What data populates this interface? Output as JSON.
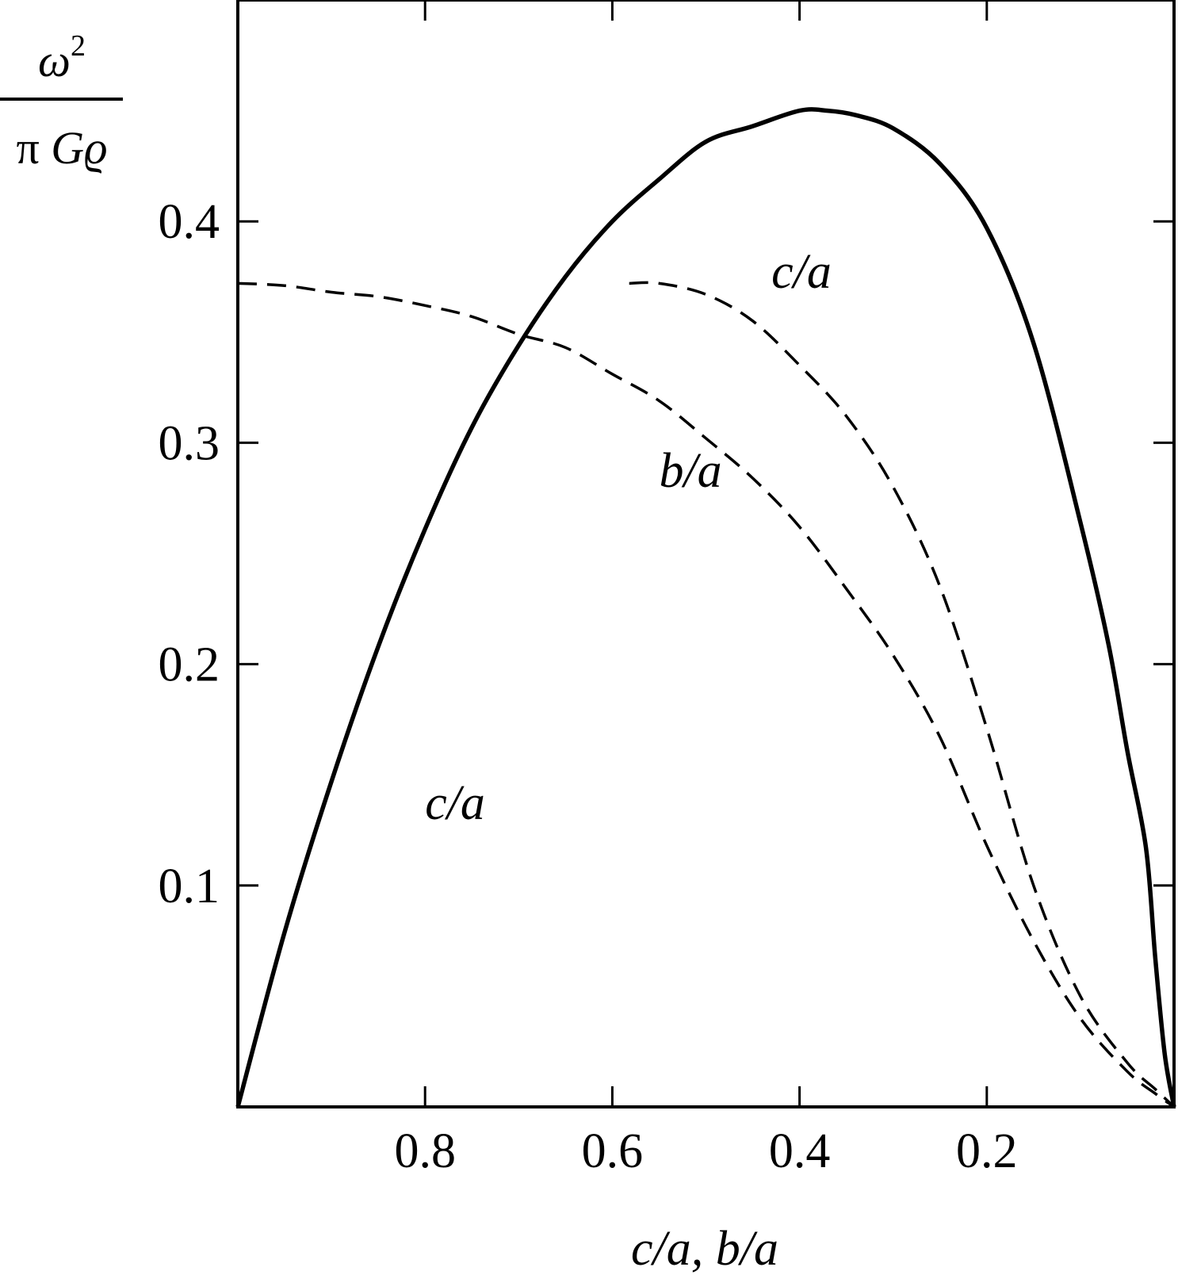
{
  "chart_data": {
    "type": "line",
    "title": "",
    "xlabel": "c/a, b/a",
    "ylabel": {
      "numerator": "ω",
      "exponent": "2",
      "denominator_pi": "π",
      "denominator_rest": "Gϱ"
    },
    "xlim": [
      1.0,
      0.0
    ],
    "ylim": [
      0.0,
      0.5
    ],
    "x_reversed": true,
    "grid": false,
    "legend": "none",
    "xticks": [
      0.8,
      0.6,
      0.4,
      0.2
    ],
    "xtick_labels": [
      "0.8",
      "0.6",
      "0.4",
      "0.2"
    ],
    "yticks": [
      0.1,
      0.2,
      0.3,
      0.4
    ],
    "ytick_labels": [
      "0.1",
      "0.2",
      "0.3",
      "0.4"
    ],
    "series": [
      {
        "style": "solid",
        "x": [
          1.0,
          0.95,
          0.9,
          0.85,
          0.8,
          0.75,
          0.7,
          0.65,
          0.6,
          0.55,
          0.5,
          0.45,
          0.4,
          0.37,
          0.34,
          0.3,
          0.25,
          0.2,
          0.15,
          0.1,
          0.07,
          0.05,
          0.03,
          0.02,
          0.01,
          0.0
        ],
        "y": [
          0.0,
          0.079,
          0.147,
          0.208,
          0.261,
          0.307,
          0.344,
          0.375,
          0.4,
          0.419,
          0.436,
          0.443,
          0.45,
          0.45,
          0.448,
          0.442,
          0.426,
          0.397,
          0.345,
          0.264,
          0.209,
          0.161,
          0.117,
          0.067,
          0.024,
          0.0
        ]
      },
      {
        "style": "dashed",
        "x": [
          1.0,
          0.95,
          0.9,
          0.85,
          0.8,
          0.75,
          0.7,
          0.65,
          0.6,
          0.55,
          0.5,
          0.45,
          0.4,
          0.35,
          0.3,
          0.25,
          0.2,
          0.15,
          0.1,
          0.05,
          0.02,
          0.0
        ],
        "y": [
          0.372,
          0.371,
          0.368,
          0.366,
          0.362,
          0.357,
          0.349,
          0.343,
          0.331,
          0.319,
          0.302,
          0.284,
          0.262,
          0.234,
          0.204,
          0.167,
          0.118,
          0.075,
          0.04,
          0.016,
          0.006,
          0.0
        ]
      },
      {
        "style": "dashed",
        "x": [
          0.582,
          0.55,
          0.5,
          0.45,
          0.4,
          0.35,
          0.3,
          0.25,
          0.2,
          0.15,
          0.1,
          0.05,
          0.02,
          0.0
        ],
        "y": [
          0.372,
          0.372,
          0.367,
          0.355,
          0.335,
          0.312,
          0.28,
          0.235,
          0.171,
          0.1,
          0.05,
          0.02,
          0.008,
          0.0
        ]
      }
    ],
    "annotations": [
      {
        "text": "c/a",
        "x": 0.8,
        "y": 0.13
      },
      {
        "text": "b/a",
        "x": 0.55,
        "y": 0.28
      },
      {
        "text": "c/a",
        "x": 0.43,
        "y": 0.37
      }
    ]
  }
}
